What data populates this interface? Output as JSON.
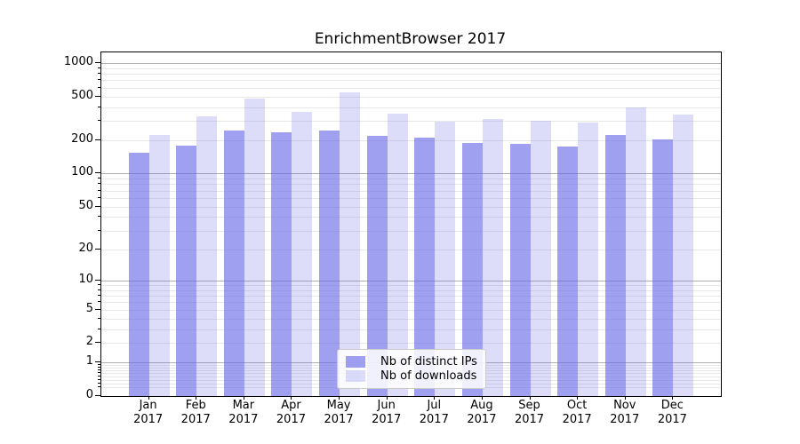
{
  "chart_data": {
    "type": "bar",
    "title": "EnrichmentBrowser 2017",
    "categories": [
      "Jan 2017",
      "Feb 2017",
      "Mar 2017",
      "Apr 2017",
      "May 2017",
      "Jun 2017",
      "Jul 2017",
      "Aug 2017",
      "Sep 2017",
      "Oct 2017",
      "Nov 2017",
      "Dec 2017"
    ],
    "series": [
      {
        "name": "Nb of distinct IPs",
        "color": "#6666e6",
        "opacity": 0.62,
        "values": [
          155,
          180,
          245,
          235,
          245,
          220,
          210,
          190,
          185,
          175,
          225,
          205
        ]
      },
      {
        "name": "Nb of downloads",
        "color": "#6666e6",
        "opacity": 0.22,
        "values": [
          225,
          330,
          475,
          360,
          545,
          350,
          295,
          310,
          300,
          290,
          395,
          340
        ]
      }
    ],
    "yscale": "log1p",
    "yticks": [
      0,
      1,
      2,
      5,
      10,
      20,
      50,
      100,
      200,
      500,
      1000
    ],
    "ymax": 1100,
    "grid": {
      "major_color": "#b0b0b0",
      "minor_color": "#e8e8e8"
    },
    "legend_position": "lower center"
  }
}
